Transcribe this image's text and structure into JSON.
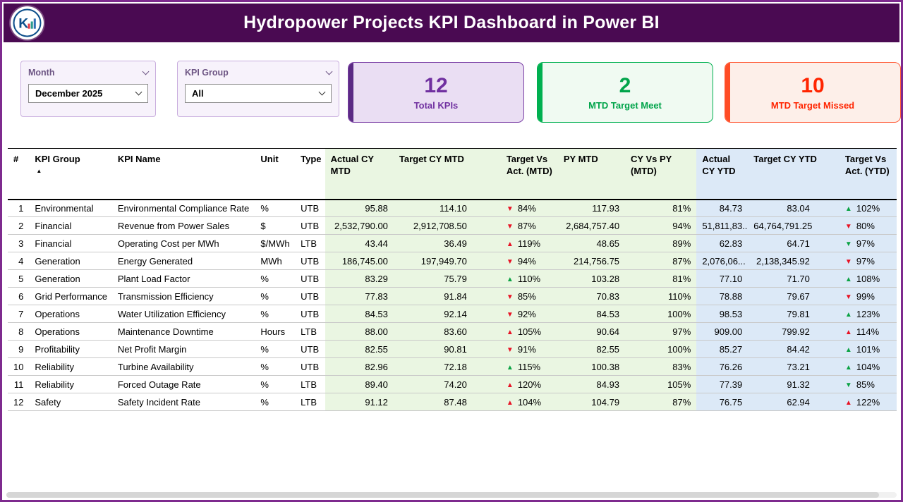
{
  "header": {
    "title": "Hydropower Projects KPI Dashboard in Power BI"
  },
  "filters": {
    "month": {
      "label": "Month",
      "value": "December 2025"
    },
    "kpi_group": {
      "label": "KPI Group",
      "value": "All"
    }
  },
  "cards": [
    {
      "value": "12",
      "label": "Total KPIs",
      "color": "#7030a0"
    },
    {
      "value": "2",
      "label": "MTD Target Meet",
      "color": "#00b050"
    },
    {
      "value": "10",
      "label": "MTD Target Missed",
      "color": "#ff2400"
    }
  ],
  "icons": {
    "triangle_up": "▲",
    "triangle_down": "▼",
    "sort_ascending": "▲"
  },
  "colors": {
    "page_border": "#7e2a8e",
    "titlebar_bg": "#4a0a52",
    "mtd_section_bg": "#eaf6e2",
    "ytd_section_bg": "#dce9f7",
    "trend_good": "#0aa243",
    "trend_bad": "#e81123"
  },
  "table": {
    "columns": [
      "#",
      "KPI Group",
      "KPI Name",
      "Unit",
      "Type",
      "Actual CY MTD",
      "Target CY MTD",
      "Target Vs Act. (MTD)",
      "PY MTD",
      "CY Vs PY (MTD)",
      "Actual CY YTD",
      "Target CY YTD",
      "Target Vs Act. (YTD)"
    ],
    "rows": [
      {
        "num": "1",
        "group": "Environmental",
        "name": "Environmental Compliance Rate",
        "unit": "%",
        "type": "UTB",
        "actual_mtd": "95.88",
        "target_mtd": "114.10",
        "tva_mtd": {
          "dir": "down",
          "status": "bad",
          "value": "84%"
        },
        "py_mtd": "117.93",
        "cy_vs_py": "81%",
        "actual_ytd": "84.73",
        "target_ytd": "83.04",
        "tva_ytd": {
          "dir": "up",
          "status": "good",
          "value": "102%"
        }
      },
      {
        "num": "2",
        "group": "Financial",
        "name": "Revenue from Power Sales",
        "unit": "$",
        "type": "UTB",
        "actual_mtd": "2,532,790.00",
        "target_mtd": "2,912,708.50",
        "tva_mtd": {
          "dir": "down",
          "status": "bad",
          "value": "87%"
        },
        "py_mtd": "2,684,757.40",
        "cy_vs_py": "94%",
        "actual_ytd": "51,811,83...",
        "target_ytd": "64,764,791.25",
        "tva_ytd": {
          "dir": "down",
          "status": "bad",
          "value": "80%"
        }
      },
      {
        "num": "3",
        "group": "Financial",
        "name": "Operating Cost per MWh",
        "unit": "$/MWh",
        "type": "LTB",
        "actual_mtd": "43.44",
        "target_mtd": "36.49",
        "tva_mtd": {
          "dir": "up",
          "status": "bad",
          "value": "119%"
        },
        "py_mtd": "48.65",
        "cy_vs_py": "89%",
        "actual_ytd": "62.83",
        "target_ytd": "64.71",
        "tva_ytd": {
          "dir": "down",
          "status": "good",
          "value": "97%"
        }
      },
      {
        "num": "4",
        "group": "Generation",
        "name": "Energy Generated",
        "unit": "MWh",
        "type": "UTB",
        "actual_mtd": "186,745.00",
        "target_mtd": "197,949.70",
        "tva_mtd": {
          "dir": "down",
          "status": "bad",
          "value": "94%"
        },
        "py_mtd": "214,756.75",
        "cy_vs_py": "87%",
        "actual_ytd": "2,076,06...",
        "target_ytd": "2,138,345.92",
        "tva_ytd": {
          "dir": "down",
          "status": "bad",
          "value": "97%"
        }
      },
      {
        "num": "5",
        "group": "Generation",
        "name": "Plant Load Factor",
        "unit": "%",
        "type": "UTB",
        "actual_mtd": "83.29",
        "target_mtd": "75.79",
        "tva_mtd": {
          "dir": "up",
          "status": "good",
          "value": "110%"
        },
        "py_mtd": "103.28",
        "cy_vs_py": "81%",
        "actual_ytd": "77.10",
        "target_ytd": "71.70",
        "tva_ytd": {
          "dir": "up",
          "status": "good",
          "value": "108%"
        }
      },
      {
        "num": "6",
        "group": "Grid Performance",
        "name": "Transmission Efficiency",
        "unit": "%",
        "type": "UTB",
        "actual_mtd": "77.83",
        "target_mtd": "91.84",
        "tva_mtd": {
          "dir": "down",
          "status": "bad",
          "value": "85%"
        },
        "py_mtd": "70.83",
        "cy_vs_py": "110%",
        "actual_ytd": "78.88",
        "target_ytd": "79.67",
        "tva_ytd": {
          "dir": "down",
          "status": "bad",
          "value": "99%"
        }
      },
      {
        "num": "7",
        "group": "Operations",
        "name": "Water Utilization Efficiency",
        "unit": "%",
        "type": "UTB",
        "actual_mtd": "84.53",
        "target_mtd": "92.14",
        "tva_mtd": {
          "dir": "down",
          "status": "bad",
          "value": "92%"
        },
        "py_mtd": "84.53",
        "cy_vs_py": "100%",
        "actual_ytd": "98.53",
        "target_ytd": "79.81",
        "tva_ytd": {
          "dir": "up",
          "status": "good",
          "value": "123%"
        }
      },
      {
        "num": "8",
        "group": "Operations",
        "name": "Maintenance Downtime",
        "unit": "Hours",
        "type": "LTB",
        "actual_mtd": "88.00",
        "target_mtd": "83.60",
        "tva_mtd": {
          "dir": "up",
          "status": "bad",
          "value": "105%"
        },
        "py_mtd": "90.64",
        "cy_vs_py": "97%",
        "actual_ytd": "909.00",
        "target_ytd": "799.92",
        "tva_ytd": {
          "dir": "up",
          "status": "bad",
          "value": "114%"
        }
      },
      {
        "num": "9",
        "group": "Profitability",
        "name": "Net Profit Margin",
        "unit": "%",
        "type": "UTB",
        "actual_mtd": "82.55",
        "target_mtd": "90.81",
        "tva_mtd": {
          "dir": "down",
          "status": "bad",
          "value": "91%"
        },
        "py_mtd": "82.55",
        "cy_vs_py": "100%",
        "actual_ytd": "85.27",
        "target_ytd": "84.42",
        "tva_ytd": {
          "dir": "up",
          "status": "good",
          "value": "101%"
        }
      },
      {
        "num": "10",
        "group": "Reliability",
        "name": "Turbine Availability",
        "unit": "%",
        "type": "UTB",
        "actual_mtd": "82.96",
        "target_mtd": "72.18",
        "tva_mtd": {
          "dir": "up",
          "status": "good",
          "value": "115%"
        },
        "py_mtd": "100.38",
        "cy_vs_py": "83%",
        "actual_ytd": "76.26",
        "target_ytd": "73.21",
        "tva_ytd": {
          "dir": "up",
          "status": "good",
          "value": "104%"
        }
      },
      {
        "num": "11",
        "group": "Reliability",
        "name": "Forced Outage Rate",
        "unit": "%",
        "type": "LTB",
        "actual_mtd": "89.40",
        "target_mtd": "74.20",
        "tva_mtd": {
          "dir": "up",
          "status": "bad",
          "value": "120%"
        },
        "py_mtd": "84.93",
        "cy_vs_py": "105%",
        "actual_ytd": "77.39",
        "target_ytd": "91.32",
        "tva_ytd": {
          "dir": "down",
          "status": "good",
          "value": "85%"
        }
      },
      {
        "num": "12",
        "group": "Safety",
        "name": "Safety Incident Rate",
        "unit": "%",
        "type": "LTB",
        "actual_mtd": "91.12",
        "target_mtd": "87.48",
        "tva_mtd": {
          "dir": "up",
          "status": "bad",
          "value": "104%"
        },
        "py_mtd": "104.79",
        "cy_vs_py": "87%",
        "actual_ytd": "76.75",
        "target_ytd": "62.94",
        "tva_ytd": {
          "dir": "up",
          "status": "bad",
          "value": "122%"
        }
      }
    ]
  }
}
